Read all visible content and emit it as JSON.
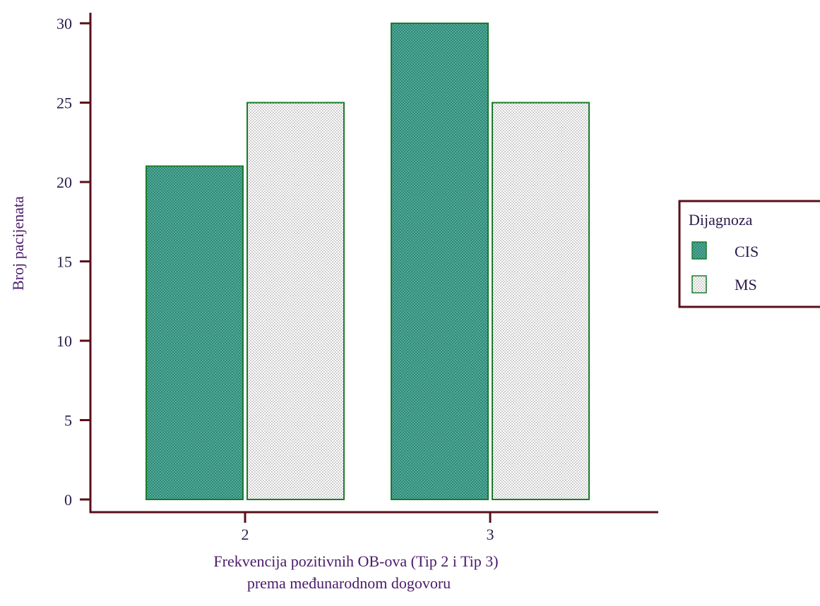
{
  "chart_data": {
    "type": "bar",
    "categories": [
      "2",
      "3"
    ],
    "series": [
      {
        "name": "CIS",
        "values": [
          21,
          30
        ]
      },
      {
        "name": "MS",
        "values": [
          25,
          25
        ]
      }
    ],
    "xlabel_line1": "Frekvencija pozitivnih OB-ova (Tip 2 i Tip 3)",
    "xlabel_line2": "prema međunarodnom dogovoru",
    "ylabel": "Broj pacijenata",
    "ylim": [
      0,
      30
    ],
    "yticks": [
      "0",
      "5",
      "10",
      "15",
      "20",
      "25",
      "30"
    ],
    "legend": {
      "title": "Dijagnoza",
      "position": "right"
    },
    "grid": false
  },
  "colors": {
    "axis": "#5a0f1a",
    "cis_fill": "#2a8a78",
    "ms_fill": "#f2f2f2",
    "bar_stroke": "#1a7a2a"
  }
}
